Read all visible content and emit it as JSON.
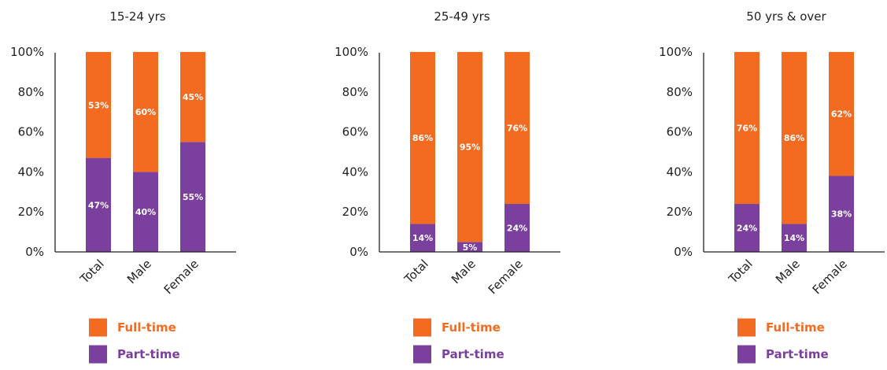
{
  "colors": {
    "full_time": "#F26B21",
    "part_time": "#7B3F9E",
    "axis": "#222222",
    "text": "#222222",
    "bar_label": "#ffffff"
  },
  "legend": {
    "position": "bottom",
    "full_time": "Full-time",
    "part_time": "Part-time"
  },
  "chart_data": [
    {
      "type": "bar",
      "stacked": true,
      "title": "15-24 yrs",
      "categories": [
        "Total",
        "Male",
        "Female"
      ],
      "ylim": [
        0,
        100
      ],
      "yticks": [
        "0%",
        "20%",
        "40%",
        "60%",
        "80%",
        "100%"
      ],
      "series": [
        {
          "name": "Part-time",
          "values": [
            47,
            40,
            55
          ],
          "labels": [
            "47%",
            "40%",
            "55%"
          ]
        },
        {
          "name": "Full-time",
          "values": [
            53,
            60,
            45
          ],
          "labels": [
            "53%",
            "60%",
            "45%"
          ]
        }
      ]
    },
    {
      "type": "bar",
      "stacked": true,
      "title": "25-49 yrs",
      "categories": [
        "Total",
        "Male",
        "Female"
      ],
      "ylim": [
        0,
        100
      ],
      "yticks": [
        "0%",
        "20%",
        "40%",
        "60%",
        "80%",
        "100%"
      ],
      "series": [
        {
          "name": "Part-time",
          "values": [
            14,
            5,
            24
          ],
          "labels": [
            "14%",
            "5%",
            "24%"
          ]
        },
        {
          "name": "Full-time",
          "values": [
            86,
            95,
            76
          ],
          "labels": [
            "86%",
            "95%",
            "76%"
          ]
        }
      ]
    },
    {
      "type": "bar",
      "stacked": true,
      "title": "50 yrs & over",
      "categories": [
        "Total",
        "Male",
        "Female"
      ],
      "ylim": [
        0,
        100
      ],
      "yticks": [
        "0%",
        "20%",
        "40%",
        "60%",
        "80%",
        "100%"
      ],
      "series": [
        {
          "name": "Part-time",
          "values": [
            24,
            14,
            38
          ],
          "labels": [
            "24%",
            "14%",
            "38%"
          ]
        },
        {
          "name": "Full-time",
          "values": [
            76,
            86,
            62
          ],
          "labels": [
            "76%",
            "86%",
            "62%"
          ]
        }
      ]
    }
  ]
}
